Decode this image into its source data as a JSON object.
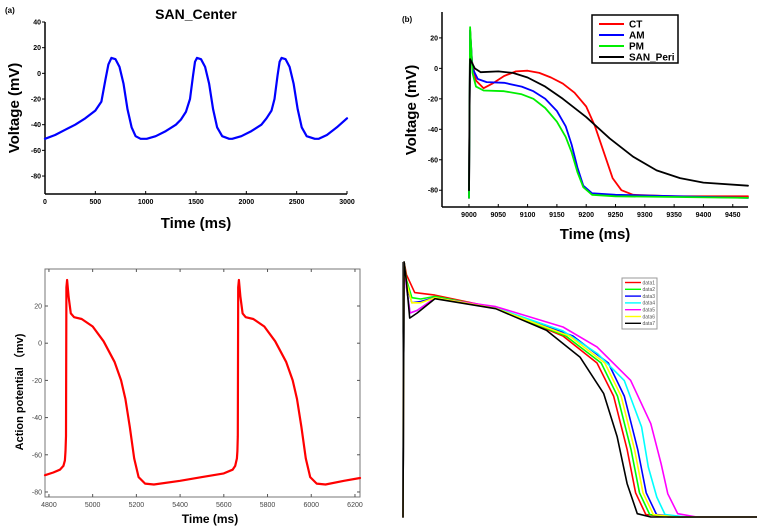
{
  "chart_data": [
    {
      "panel_label": "(a)",
      "type": "line",
      "title": "SAN_Center",
      "xlabel": "Time (ms)",
      "ylabel": "Voltage (mV)",
      "xlim": [
        0,
        3000
      ],
      "ylim": [
        -94,
        40
      ],
      "xticks": [
        0,
        500,
        1000,
        1500,
        2000,
        2500,
        3000
      ],
      "yticks": [
        40,
        20,
        0,
        -20,
        -40,
        -60,
        -80
      ],
      "grid": false,
      "series": [
        {
          "color": "#0000ff",
          "x": [
            0,
            100,
            200,
            300,
            400,
            500,
            560,
            600,
            630,
            660,
            700,
            740,
            780,
            820,
            860,
            900,
            950,
            1010,
            1100,
            1200,
            1300,
            1350,
            1400,
            1440,
            1470,
            1490,
            1510,
            1550,
            1590,
            1630,
            1670,
            1710,
            1760,
            1830,
            1860,
            1950,
            2050,
            2150,
            2200,
            2250,
            2280,
            2310,
            2330,
            2350,
            2390,
            2430,
            2470,
            2510,
            2550,
            2600,
            2680,
            2720,
            2800,
            2900,
            3000
          ],
          "y": [
            -51,
            -48,
            -44,
            -40,
            -35,
            -29,
            -22,
            -5,
            7,
            12,
            11,
            5,
            -8,
            -28,
            -42,
            -49,
            -51,
            -51,
            -49,
            -45,
            -40,
            -36,
            -30,
            -20,
            -2,
            9,
            12,
            11,
            5,
            -8,
            -28,
            -42,
            -49,
            -51,
            -51,
            -49,
            -45,
            -40,
            -35,
            -29,
            -20,
            -2,
            9,
            12,
            11,
            5,
            -8,
            -28,
            -42,
            -49,
            -51,
            -51,
            -48,
            -42,
            -35
          ]
        }
      ]
    },
    {
      "panel_label": "(b)",
      "type": "line",
      "xlabel": "Time (ms)",
      "ylabel": "Voltage (mV)",
      "xlim": [
        8954,
        9476
      ],
      "ylim": [
        -91,
        37
      ],
      "xticks": [
        9000,
        9050,
        9100,
        9150,
        9200,
        9250,
        9300,
        9350,
        9400,
        9450
      ],
      "yticks": [
        20,
        0,
        -20,
        -40,
        -60,
        -80
      ],
      "grid": false,
      "legend": "top-right",
      "series": [
        {
          "name": "CT",
          "color": "#ff0000",
          "x": [
            9000,
            9002,
            9005,
            9012,
            9025,
            9040,
            9060,
            9080,
            9100,
            9120,
            9140,
            9160,
            9180,
            9200,
            9215,
            9230,
            9245,
            9260,
            9280,
            9350,
            9476
          ],
          "y": [
            -85,
            25,
            5,
            -8,
            -13,
            -10,
            -5,
            -2,
            -1.5,
            -3,
            -6,
            -10,
            -16,
            -25,
            -38,
            -55,
            -72,
            -80,
            -83,
            -84,
            -84
          ]
        },
        {
          "name": "AM",
          "color": "#0000ff",
          "x": [
            9000,
            9002,
            9006,
            9015,
            9030,
            9060,
            9090,
            9110,
            9130,
            9150,
            9165,
            9175,
            9185,
            9195,
            9210,
            9250,
            9476
          ],
          "y": [
            -85,
            25,
            0,
            -7,
            -9,
            -9.5,
            -12,
            -15,
            -20,
            -28,
            -38,
            -50,
            -65,
            -77,
            -82,
            -83,
            -85
          ]
        },
        {
          "name": "PM",
          "color": "#00ee00",
          "x": [
            9000,
            9002,
            9006,
            9012,
            9025,
            9060,
            9090,
            9110,
            9130,
            9150,
            9165,
            9175,
            9185,
            9195,
            9210,
            9250,
            9476
          ],
          "y": [
            -85,
            27,
            -3,
            -12,
            -14.5,
            -15,
            -17,
            -20,
            -26,
            -35,
            -45,
            -55,
            -68,
            -78,
            -83,
            -84,
            -85
          ]
        },
        {
          "name": "SAN_Peri",
          "color": "#000000",
          "x": [
            9000,
            9001,
            9002,
            9010,
            9020,
            9050,
            9075,
            9100,
            9130,
            9160,
            9200,
            9240,
            9280,
            9320,
            9360,
            9400,
            9476
          ],
          "y": [
            -80,
            -20,
            6,
            0,
            -2.5,
            -2,
            -3,
            -6,
            -12,
            -20,
            -32,
            -46,
            -58,
            -67,
            -72,
            -75,
            -77
          ]
        }
      ]
    },
    {
      "type": "line",
      "xlabel": "Time (ms)",
      "ylabel": "Action potential （mv)",
      "xlim": [
        4782,
        6223
      ],
      "ylim": [
        -82.7,
        39.9
      ],
      "xticks": [
        4800,
        5000,
        5200,
        5400,
        5600,
        5800,
        6000,
        6200
      ],
      "yticks": [
        20,
        0,
        -20,
        -40,
        -60,
        -80
      ],
      "grid": false,
      "series": [
        {
          "color": "#ff0000",
          "x": [
            4782,
            4820,
            4850,
            4866,
            4873,
            4876,
            4878,
            4880,
            4883,
            4890,
            4900,
            4915,
            4950,
            5000,
            5050,
            5100,
            5130,
            5150,
            5170,
            5190,
            5210,
            5240,
            5280,
            5400,
            5500,
            5600,
            5640,
            5652,
            5660,
            5662,
            5664,
            5666,
            5669,
            5676,
            5686,
            5700,
            5735,
            5785,
            5835,
            5885,
            5915,
            5935,
            5955,
            5975,
            5995,
            6025,
            6065,
            6150,
            6223
          ],
          "y": [
            -71,
            -69.5,
            -68,
            -66,
            -63,
            -58,
            -50,
            30,
            34,
            25,
            16,
            14,
            13,
            9,
            1,
            -10,
            -20,
            -30,
            -45,
            -62,
            -72,
            -75.5,
            -76,
            -74,
            -72,
            -70,
            -68,
            -66,
            -62,
            -58,
            -50,
            30,
            34,
            25,
            16,
            14,
            13,
            9,
            1,
            -10,
            -20,
            -30,
            -45,
            -62,
            -72,
            -75.5,
            -76,
            -74,
            -72.5
          ]
        }
      ]
    },
    {
      "type": "line",
      "xlim": [
        0,
        100
      ],
      "ylim": [
        0,
        100
      ],
      "grid": false,
      "legend": "top-right",
      "series": [
        {
          "name": "data1",
          "color": "#ff0000",
          "x": [
            0,
            0.3,
            1,
            3.3,
            9,
            26.2,
            45.2,
            54.8,
            59.5,
            63.3,
            65.7,
            68.6,
            75,
            100
          ],
          "y": [
            0,
            100,
            95,
            88,
            87,
            82,
            71,
            60.4,
            47.4,
            26.5,
            9.5,
            1,
            0,
            0
          ]
        },
        {
          "name": "data2",
          "color": "#00ff00",
          "x": [
            0,
            0.3,
            1,
            2.5,
            5,
            9,
            26.2,
            46,
            56,
            60.6,
            64.4,
            66.8,
            69.7,
            76,
            100
          ],
          "y": [
            0,
            100,
            93,
            86,
            85.5,
            86.5,
            82,
            71,
            60.4,
            47.4,
            26.5,
            9.5,
            1,
            0,
            0
          ]
        },
        {
          "name": "data3",
          "color": "#0000ff",
          "x": [
            0,
            0.3,
            1,
            2.5,
            5,
            9,
            26.2,
            48,
            58,
            62.5,
            66.3,
            68.7,
            71.6,
            78,
            100
          ],
          "y": [
            0,
            100,
            91,
            84,
            84.5,
            86,
            82,
            71,
            60.4,
            47.4,
            26.5,
            9.5,
            1,
            0,
            0
          ]
        },
        {
          "name": "data4",
          "color": "#00ffff",
          "x": [
            0,
            0.3,
            1,
            2,
            4,
            9,
            26.2,
            45.2,
            55,
            62.5,
            67.4,
            69.3,
            71.7,
            74,
            80,
            100
          ],
          "y": [
            0,
            100,
            90,
            80,
            81,
            85.8,
            82,
            73,
            64,
            53.5,
            35.3,
            19.6,
            7.8,
            1,
            0,
            0
          ]
        },
        {
          "name": "data5",
          "color": "#ff00ff",
          "x": [
            0,
            0.3,
            1,
            2,
            4,
            9,
            26.2,
            45.2,
            54.8,
            64.3,
            70,
            72.9,
            74.8,
            77.6,
            83,
            100
          ],
          "y": [
            0,
            100,
            90,
            80,
            81,
            85.8,
            82.5,
            74.5,
            66.7,
            53.6,
            36.6,
            20.9,
            9.1,
            1.3,
            0,
            0
          ]
        },
        {
          "name": "data6",
          "color": "#ffff00",
          "x": [
            0,
            0.3,
            1,
            2.5,
            5,
            9,
            26.2,
            47,
            57,
            61.6,
            65.4,
            67.8,
            70.7,
            77,
            100
          ],
          "y": [
            0,
            100,
            92,
            84,
            84,
            86,
            81.8,
            71,
            60.4,
            47.4,
            26.5,
            9.5,
            1,
            0,
            0
          ]
        },
        {
          "name": "data7",
          "color": "#000000",
          "x": [
            0,
            0.3,
            1,
            1.9,
            4,
            9,
            26.2,
            40.5,
            50,
            56.7,
            60.5,
            63.3,
            66.2,
            70,
            100
          ],
          "y": [
            0,
            100,
            92,
            78,
            80,
            85.6,
            81.7,
            73.2,
            62.7,
            48.4,
            31.4,
            13.1,
            1.3,
            0,
            0
          ]
        }
      ]
    }
  ]
}
